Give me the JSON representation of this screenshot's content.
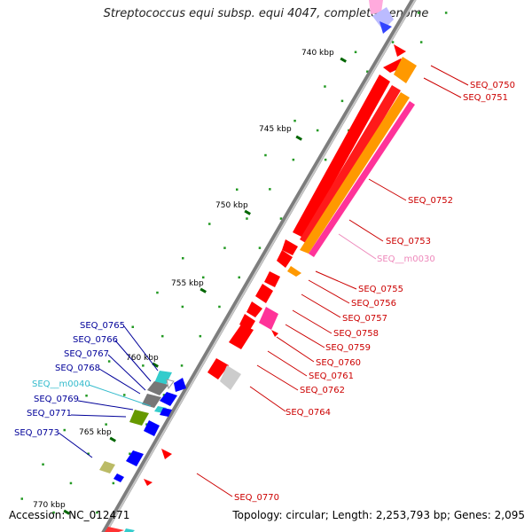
{
  "title": "Streptococcus equi subsp. equi 4047, complete genome",
  "accession": "Accession: NC_012471",
  "stats": "Topology: circular; Length: 2,253,793 bp; Genes: 2,095",
  "colors": {
    "cds": "#ff0000",
    "orange": "#ff9900",
    "pink": "#ff3399",
    "blue": "#0000ff",
    "cyan": "#33cccc",
    "gray": "#888888",
    "olive": "#669900",
    "khaki": "#bbbb66",
    "backbone": "#888888",
    "label_forward": "#cc0000",
    "label_reverse": "#000099",
    "label_ncrna_forward": "#ee88bb",
    "label_ncrna_reverse": "#33bbcc"
  },
  "ticks": [
    "740 kbp",
    "745 kbp",
    "750 kbp",
    "755 kbp",
    "760 kbp",
    "765 kbp",
    "770 kbp"
  ],
  "labels": {
    "right": [
      "SEQ_0750",
      "SEQ_0751",
      "SEQ_0752",
      "SEQ_0753",
      "SEQ__m0030",
      "SEQ_0755",
      "SEQ_0756",
      "SEQ_0757",
      "SEQ_0758",
      "SEQ_0759",
      "SEQ_0760",
      "SEQ_0761",
      "SEQ_0762",
      "SEQ_0764",
      "SEQ_0770"
    ],
    "left": [
      "SEQ_0765",
      "SEQ_0766",
      "SEQ_0767",
      "SEQ_0768",
      "SEQ__m0040",
      "SEQ_0769",
      "SEQ_0771",
      "SEQ_0773"
    ]
  }
}
